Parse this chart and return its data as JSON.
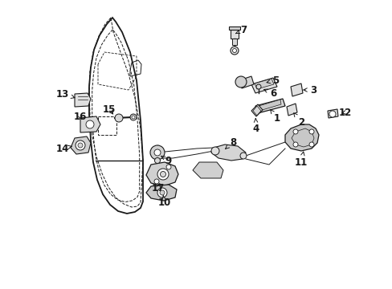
{
  "background_color": "#ffffff",
  "figure_width": 4.89,
  "figure_height": 3.6,
  "dpi": 100,
  "line_color": "#1a1a1a",
  "label_fontsize": 8.5,
  "door_outer": {
    "x": [
      0.27,
      0.253,
      0.238,
      0.228,
      0.222,
      0.222,
      0.225,
      0.23,
      0.238,
      0.248,
      0.26,
      0.275,
      0.29,
      0.295,
      0.296,
      0.295,
      0.29,
      0.282,
      0.268,
      0.262,
      0.262,
      0.265,
      0.27
    ],
    "y": [
      0.97,
      0.965,
      0.955,
      0.94,
      0.92,
      0.88,
      0.84,
      0.8,
      0.75,
      0.7,
      0.66,
      0.64,
      0.64,
      0.65,
      0.68,
      0.75,
      0.82,
      0.88,
      0.93,
      0.95,
      0.96,
      0.967,
      0.97
    ]
  }
}
